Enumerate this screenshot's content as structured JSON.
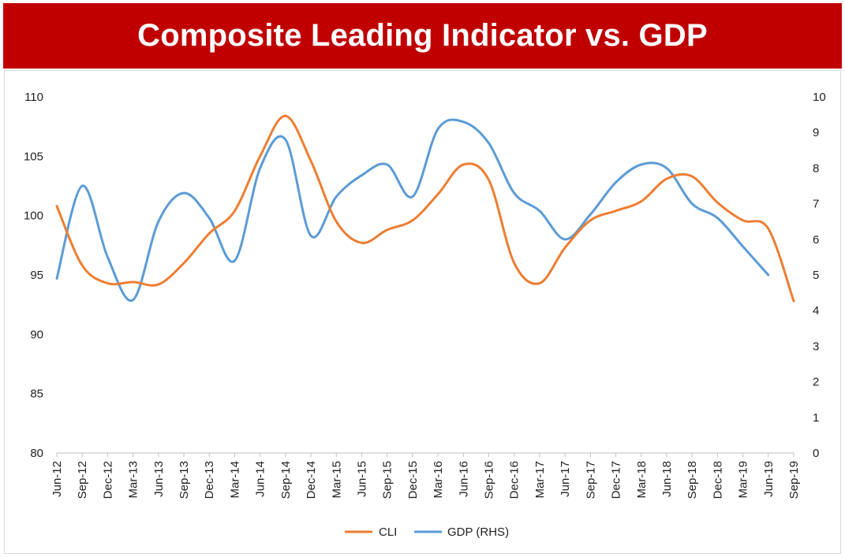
{
  "header": {
    "title": "Composite Leading Indicator vs. GDP"
  },
  "chart_data": {
    "type": "line",
    "title": "Composite Leading Indicator vs. GDP",
    "categories": [
      "Jun-12",
      "Sep-12",
      "Dec-12",
      "Mar-13",
      "Jun-13",
      "Sep-13",
      "Dec-13",
      "Mar-14",
      "Jun-14",
      "Sep-14",
      "Dec-14",
      "Mar-15",
      "Jun-15",
      "Sep-15",
      "Dec-15",
      "Mar-16",
      "Jun-16",
      "Sep-16",
      "Dec-16",
      "Mar-17",
      "Jun-17",
      "Sep-17",
      "Dec-17",
      "Mar-18",
      "Jun-18",
      "Sep-18",
      "Dec-18",
      "Mar-19",
      "Jun-19",
      "Sep-19"
    ],
    "y_left": {
      "min": 80,
      "max": 110,
      "ticks": [
        "80",
        "85",
        "90",
        "95",
        "100",
        "105",
        "110"
      ]
    },
    "y_right": {
      "min": 0,
      "max": 10,
      "ticks": [
        "0",
        "1",
        "2",
        "3",
        "4",
        "5",
        "6",
        "7",
        "8",
        "9",
        "10"
      ]
    },
    "series": [
      {
        "name": "CLI",
        "axis": "left",
        "color": "#ed7d31",
        "values": [
          100.8,
          95.8,
          94.3,
          94.4,
          94.2,
          96.0,
          98.5,
          100.4,
          105.0,
          108.4,
          104.6,
          99.5,
          97.7,
          98.8,
          99.6,
          101.8,
          104.3,
          103.0,
          96.0,
          94.3,
          97.3,
          99.6,
          100.4,
          101.2,
          103.1,
          103.3,
          101.1,
          99.6,
          98.9,
          92.8
        ]
      },
      {
        "name": "GDP (RHS)",
        "axis": "right",
        "color": "#5b9bd5",
        "values": [
          4.9,
          7.5,
          5.5,
          4.3,
          6.5,
          7.3,
          6.6,
          5.4,
          8.0,
          8.8,
          6.1,
          7.2,
          7.8,
          8.1,
          7.2,
          9.1,
          9.3,
          8.7,
          7.3,
          6.8,
          6.0,
          6.7,
          7.6,
          8.1,
          8.0,
          7.0,
          6.6,
          5.8,
          5.0,
          null
        ]
      }
    ],
    "legend": "bottom",
    "grid": false
  }
}
